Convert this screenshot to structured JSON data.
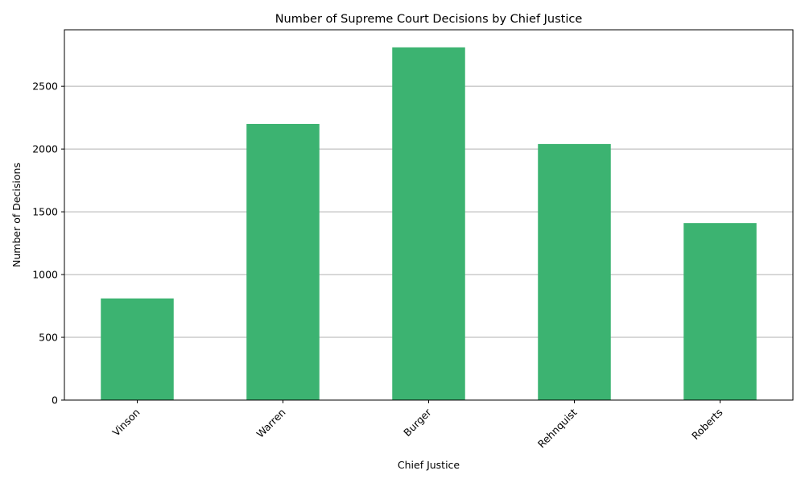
{
  "chart_data": {
    "type": "bar",
    "title": "Number of Supreme Court Decisions by Chief Justice",
    "xlabel": "Chief Justice",
    "ylabel": "Number of Decisions",
    "categories": [
      "Vinson",
      "Warren",
      "Burger",
      "Rehnquist",
      "Roberts"
    ],
    "values": [
      810,
      2200,
      2810,
      2040,
      1410
    ],
    "ylim": [
      0,
      2950
    ],
    "yticks": [
      0,
      500,
      1000,
      1500,
      2000,
      2500
    ],
    "grid": "y-major",
    "legend": "none",
    "bar_color": "#3cb371"
  }
}
